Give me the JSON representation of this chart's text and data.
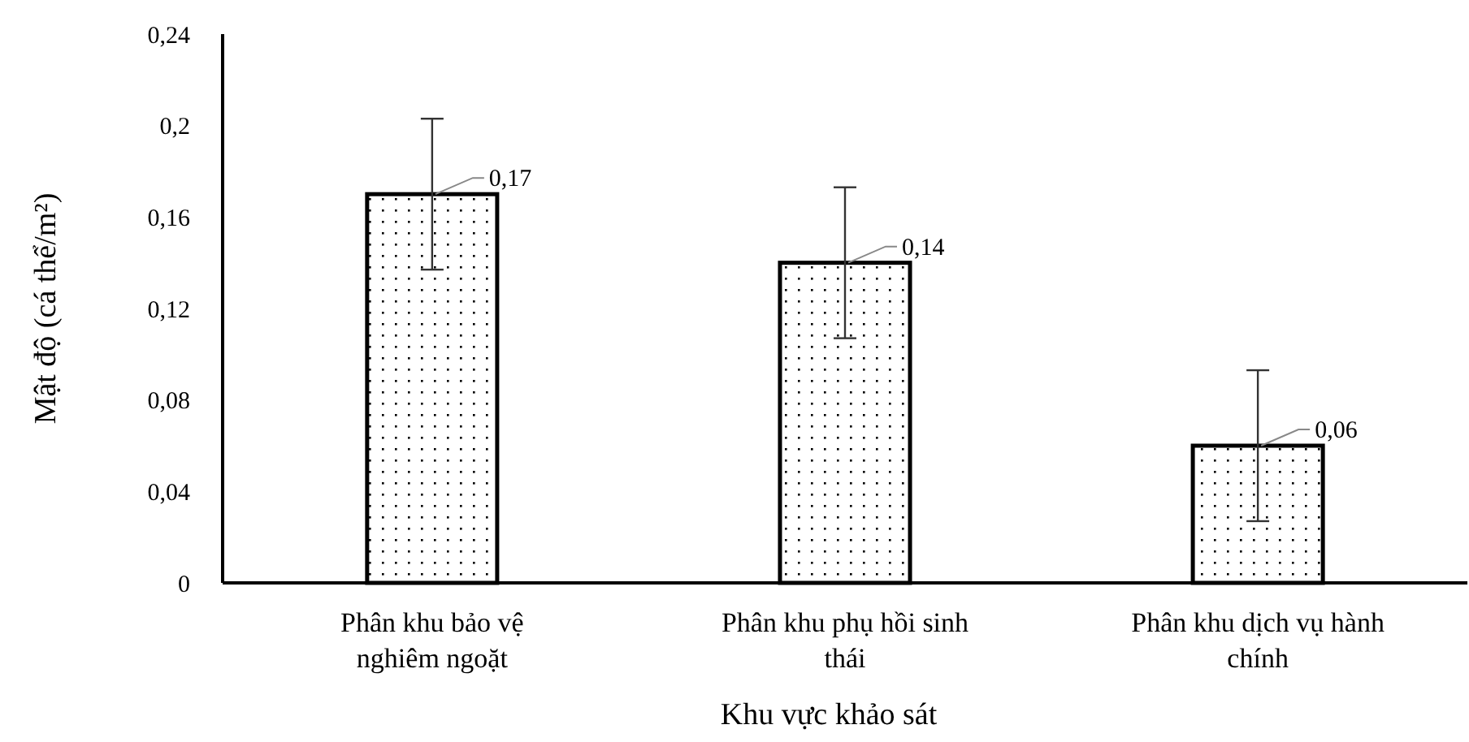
{
  "chart_data": {
    "type": "bar",
    "xlabel": "Khu vực khảo sát",
    "ylabel": "Mật độ (cá thể/m²)",
    "categories": [
      "Phân khu bảo vệ nghiêm ngoặt",
      "Phân khu phụ hồi sinh thái",
      "Phân khu dịch vụ hành chính"
    ],
    "values": [
      0.17,
      0.14,
      0.06
    ],
    "errors": [
      0.033,
      0.033,
      0.033
    ],
    "value_labels": [
      "0,17",
      "0,14",
      "0,06"
    ],
    "color": "#000000",
    "ylim": [
      0,
      0.24
    ],
    "yticks": [
      0,
      {
        "value": 0.04,
        "label": "0,04"
      },
      {
        "value": 0.08,
        "label": "0,08"
      },
      {
        "value": 0.12,
        "label": "0,12"
      },
      {
        "value": 0.16,
        "label": "0,16"
      },
      {
        "value": 0.2,
        "label": "0,2"
      },
      {
        "value": 0.24,
        "label": "0,24"
      }
    ],
    "grid": false
  }
}
